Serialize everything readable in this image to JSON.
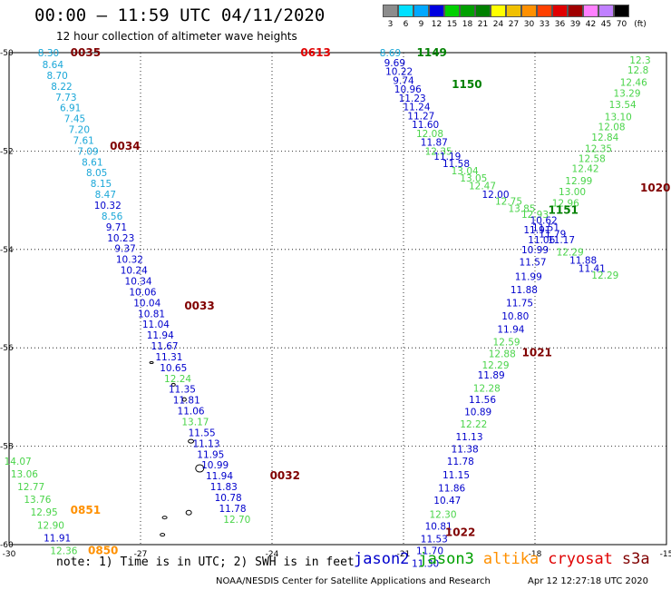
{
  "header": {
    "title": "00:00 – 11:59 UTC 04/11/2020",
    "subtitle": "12 hour collection of altimeter wave heights"
  },
  "color_scale": {
    "unit": "(ft)",
    "bins": [
      {
        "label": "3",
        "color": "#8c8c8c"
      },
      {
        "label": "6",
        "color": "#00e0ff"
      },
      {
        "label": "9",
        "color": "#00a8ff"
      },
      {
        "label": "12",
        "color": "#0000e0"
      },
      {
        "label": "15",
        "color": "#00d000"
      },
      {
        "label": "18",
        "color": "#00a000"
      },
      {
        "label": "21",
        "color": "#008000"
      },
      {
        "label": "24",
        "color": "#ffff00"
      },
      {
        "label": "27",
        "color": "#f0c000"
      },
      {
        "label": "30",
        "color": "#ff9000"
      },
      {
        "label": "33",
        "color": "#ff4000"
      },
      {
        "label": "36",
        "color": "#e00000"
      },
      {
        "label": "39",
        "color": "#a00000"
      },
      {
        "label": "42",
        "color": "#ff80ff"
      },
      {
        "label": "45",
        "color": "#c080ff"
      },
      {
        "label": "70",
        "color": "#000000"
      }
    ]
  },
  "map": {
    "lon_ticks": [
      "-30",
      "-27",
      "-24",
      "-21",
      "-18",
      "-15"
    ],
    "lat_ticks": [
      "-50",
      "-52",
      "-54",
      "-56",
      "-58",
      "-60"
    ],
    "lon_range": [
      -30,
      -15
    ],
    "lat_range": [
      -60,
      -50
    ],
    "tracks": [
      {
        "color": "#1aa7d8",
        "points": [
          {
            "lon": -29.1,
            "lat": -50.0,
            "t": "8.30"
          },
          {
            "lon": -29.0,
            "lat": -50.24,
            "t": "8.64"
          },
          {
            "lon": -28.9,
            "lat": -50.46,
            "t": "8.70"
          },
          {
            "lon": -28.8,
            "lat": -50.68,
            "t": "8.22"
          },
          {
            "lon": -28.7,
            "lat": -50.9,
            "t": "7.73"
          },
          {
            "lon": -28.6,
            "lat": -51.12,
            "t": "6.91"
          },
          {
            "lon": -28.5,
            "lat": -51.34,
            "t": "7.45"
          },
          {
            "lon": -28.4,
            "lat": -51.56,
            "t": "7.20"
          },
          {
            "lon": -28.3,
            "lat": -51.78,
            "t": "7.61"
          },
          {
            "lon": -28.2,
            "lat": -52.0,
            "t": "7.09"
          },
          {
            "lon": -28.1,
            "lat": -52.22,
            "t": "8.61"
          },
          {
            "lon": -28.0,
            "lat": -52.44,
            "t": "8.05"
          },
          {
            "lon": -27.9,
            "lat": -52.66,
            "t": "8.15"
          },
          {
            "lon": -27.8,
            "lat": -52.88,
            "t": "8.47"
          }
        ]
      },
      {
        "color": "#0000cc",
        "points": [
          {
            "lon": -27.75,
            "lat": -53.1,
            "t": "10.32"
          },
          {
            "lon": -27.65,
            "lat": -53.32,
            "t": "8.56",
            "c": "#1aa7d8"
          },
          {
            "lon": -27.55,
            "lat": -53.54,
            "t": "9.71"
          },
          {
            "lon": -27.45,
            "lat": -53.76,
            "t": "10.23"
          },
          {
            "lon": -27.35,
            "lat": -53.98,
            "t": "9.37"
          },
          {
            "lon": -27.25,
            "lat": -54.2,
            "t": "10.32"
          },
          {
            "lon": -27.15,
            "lat": -54.42,
            "t": "10.24"
          },
          {
            "lon": -27.05,
            "lat": -54.64,
            "t": "10.34"
          },
          {
            "lon": -26.95,
            "lat": -54.86,
            "t": "10.06"
          },
          {
            "lon": -26.85,
            "lat": -55.08,
            "t": "10.04"
          },
          {
            "lon": -26.75,
            "lat": -55.3,
            "t": "10.81"
          },
          {
            "lon": -26.65,
            "lat": -55.52,
            "t": "11.04"
          },
          {
            "lon": -26.55,
            "lat": -55.74,
            "t": "11.94"
          },
          {
            "lon": -26.45,
            "lat": -55.96,
            "t": "11.67"
          },
          {
            "lon": -26.35,
            "lat": -56.18,
            "t": "11.31"
          },
          {
            "lon": -26.25,
            "lat": -56.4,
            "t": "10.65"
          },
          {
            "lon": -26.15,
            "lat": -56.62,
            "t": "12.24",
            "c": "#4ad44a"
          },
          {
            "lon": -26.05,
            "lat": -56.84,
            "t": "11.35"
          },
          {
            "lon": -25.95,
            "lat": -57.06,
            "t": "11.81"
          },
          {
            "lon": -25.85,
            "lat": -57.28,
            "t": "11.06"
          },
          {
            "lon": -25.75,
            "lat": -57.5,
            "t": "13.17",
            "c": "#4ad44a"
          },
          {
            "lon": -25.6,
            "lat": -57.72,
            "t": "11.55"
          },
          {
            "lon": -25.5,
            "lat": -57.94,
            "t": "11.13"
          },
          {
            "lon": -25.4,
            "lat": -58.16,
            "t": "11.95"
          },
          {
            "lon": -25.3,
            "lat": -58.38,
            "t": "10.99"
          },
          {
            "lon": -25.2,
            "lat": -58.6,
            "t": "11.94"
          },
          {
            "lon": -25.1,
            "lat": -58.82,
            "t": "11.83"
          },
          {
            "lon": -25.0,
            "lat": -59.04,
            "t": "10.78"
          },
          {
            "lon": -24.9,
            "lat": -59.26,
            "t": "11.78"
          },
          {
            "lon": -24.8,
            "lat": -59.48,
            "t": "12.70",
            "c": "#4ad44a"
          }
        ]
      },
      {
        "color": "#0000cc",
        "points": [
          {
            "lon": -21.3,
            "lat": -50.0,
            "t": "8.69",
            "c": "#1aa7d8"
          },
          {
            "lon": -21.2,
            "lat": -50.2,
            "t": "9.69"
          },
          {
            "lon": -21.1,
            "lat": -50.38,
            "t": "10.22"
          },
          {
            "lon": -21.0,
            "lat": -50.56,
            "t": "9.74"
          },
          {
            "lon": -20.9,
            "lat": -50.74,
            "t": "10.96"
          },
          {
            "lon": -20.8,
            "lat": -50.92,
            "t": "11.23"
          },
          {
            "lon": -20.7,
            "lat": -51.1,
            "t": "11.24"
          },
          {
            "lon": -20.6,
            "lat": -51.28,
            "t": "11.27"
          },
          {
            "lon": -20.5,
            "lat": -51.46,
            "t": "11.60"
          },
          {
            "lon": -20.4,
            "lat": -51.64,
            "t": "12.08",
            "c": "#4ad44a"
          },
          {
            "lon": -20.3,
            "lat": -51.82,
            "t": "11.87"
          },
          {
            "lon": -20.2,
            "lat": -52.0,
            "t": "12.35",
            "c": "#4ad44a"
          },
          {
            "lon": -20.0,
            "lat": -52.1,
            "t": "11.19"
          },
          {
            "lon": -19.8,
            "lat": -52.25,
            "t": "11.58"
          },
          {
            "lon": -19.6,
            "lat": -52.4,
            "t": "13.04",
            "c": "#4ad44a"
          },
          {
            "lon": -19.4,
            "lat": -52.55,
            "t": "13.05",
            "c": "#4ad44a"
          },
          {
            "lon": -19.2,
            "lat": -52.7,
            "t": "12.47",
            "c": "#4ad44a"
          },
          {
            "lon": -18.9,
            "lat": -52.88,
            "t": "12.00"
          },
          {
            "lon": -18.6,
            "lat": -53.02,
            "t": "12.75",
            "c": "#4ad44a"
          },
          {
            "lon": -18.3,
            "lat": -53.16,
            "t": "13.85",
            "c": "#4ad44a"
          },
          {
            "lon": -18.0,
            "lat": -53.28,
            "t": "12.93",
            "c": "#4ad44a"
          },
          {
            "lon": -17.8,
            "lat": -53.4,
            "t": "10.62"
          },
          {
            "lon": -17.75,
            "lat": -53.55,
            "t": "11.51"
          },
          {
            "lon": -17.6,
            "lat": -53.68,
            "t": "11.79"
          },
          {
            "lon": -17.4,
            "lat": -53.8,
            "t": "11.17"
          },
          {
            "lon": -17.2,
            "lat": -54.05,
            "t": "12.29",
            "c": "#4ad44a"
          },
          {
            "lon": -16.9,
            "lat": -54.22,
            "t": "11.88"
          },
          {
            "lon": -16.7,
            "lat": -54.38,
            "t": "11.41"
          },
          {
            "lon": -16.4,
            "lat": -54.52,
            "t": "12.29",
            "c": "#4ad44a"
          }
        ]
      },
      {
        "color": "#4ad44a",
        "points": [
          {
            "lon": -15.6,
            "lat": -50.15,
            "t": "12.3"
          },
          {
            "lon": -15.65,
            "lat": -50.35,
            "t": "12.8"
          },
          {
            "lon": -15.75,
            "lat": -50.6,
            "t": "12.46"
          },
          {
            "lon": -15.9,
            "lat": -50.82,
            "t": "13.29"
          },
          {
            "lon": -16.0,
            "lat": -51.05,
            "t": "13.54"
          },
          {
            "lon": -16.1,
            "lat": -51.3,
            "t": "13.10"
          },
          {
            "lon": -16.25,
            "lat": -51.5,
            "t": "12.08"
          },
          {
            "lon": -16.4,
            "lat": -51.72,
            "t": "12.84"
          },
          {
            "lon": -16.55,
            "lat": -51.95,
            "t": "12.35"
          },
          {
            "lon": -16.7,
            "lat": -52.15,
            "t": "12.58"
          },
          {
            "lon": -16.85,
            "lat": -52.35,
            "t": "12.42"
          },
          {
            "lon": -17.0,
            "lat": -52.6,
            "t": "12.99"
          },
          {
            "lon": -17.15,
            "lat": -52.82,
            "t": "13.00"
          },
          {
            "lon": -17.3,
            "lat": -53.05,
            "t": "12.96"
          }
        ]
      },
      {
        "color": "#0000cc",
        "points": [
          {
            "lon": -17.85,
            "lat": -53.8,
            "t": "11.06"
          },
          {
            "lon": -17.95,
            "lat": -53.6,
            "t": "11.91"
          },
          {
            "lon": -18.0,
            "lat": -54.0,
            "t": "10.99"
          },
          {
            "lon": -18.05,
            "lat": -54.25,
            "t": "11.57"
          },
          {
            "lon": -18.15,
            "lat": -54.55,
            "t": "11.99"
          },
          {
            "lon": -18.25,
            "lat": -54.82,
            "t": "11.88"
          },
          {
            "lon": -18.35,
            "lat": -55.08,
            "t": "11.75"
          },
          {
            "lon": -18.45,
            "lat": -55.35,
            "t": "10.80"
          },
          {
            "lon": -18.55,
            "lat": -55.62,
            "t": "11.94"
          },
          {
            "lon": -18.65,
            "lat": -55.88,
            "t": "12.59",
            "c": "#4ad44a"
          },
          {
            "lon": -18.75,
            "lat": -56.12,
            "t": "12.88",
            "c": "#4ad44a"
          },
          {
            "lon": -18.9,
            "lat": -56.35,
            "t": "12.29",
            "c": "#4ad44a"
          },
          {
            "lon": -19.0,
            "lat": -56.55,
            "t": "11.89"
          },
          {
            "lon": -19.1,
            "lat": -56.82,
            "t": "12.28",
            "c": "#4ad44a"
          },
          {
            "lon": -19.2,
            "lat": -57.05,
            "t": "11.56"
          },
          {
            "lon": -19.3,
            "lat": -57.3,
            "t": "10.89"
          },
          {
            "lon": -19.4,
            "lat": -57.55,
            "t": "12.22",
            "c": "#4ad44a"
          },
          {
            "lon": -19.5,
            "lat": -57.8,
            "t": "11.13"
          },
          {
            "lon": -19.6,
            "lat": -58.05,
            "t": "11.38"
          },
          {
            "lon": -19.7,
            "lat": -58.3,
            "t": "11.78"
          },
          {
            "lon": -19.8,
            "lat": -58.58,
            "t": "11.15"
          },
          {
            "lon": -19.9,
            "lat": -58.85,
            "t": "11.86"
          },
          {
            "lon": -20.0,
            "lat": -59.1,
            "t": "10.47"
          },
          {
            "lon": -20.1,
            "lat": -59.38,
            "t": "12.30",
            "c": "#4ad44a"
          },
          {
            "lon": -20.2,
            "lat": -59.62,
            "t": "10.81"
          },
          {
            "lon": -20.3,
            "lat": -59.88,
            "t": "11.53"
          },
          {
            "lon": -20.4,
            "lat": -60.12,
            "t": "11.70"
          },
          {
            "lon": -20.5,
            "lat": -60.38,
            "t": "11.30"
          }
        ]
      },
      {
        "color": "#4ad44a",
        "points": [
          {
            "lon": -29.8,
            "lat": -58.3,
            "t": "14.07"
          },
          {
            "lon": -29.65,
            "lat": -58.56,
            "t": "13.06"
          },
          {
            "lon": -29.5,
            "lat": -58.82,
            "t": "12.77"
          },
          {
            "lon": -29.35,
            "lat": -59.08,
            "t": "13.76"
          },
          {
            "lon": -29.2,
            "lat": -59.34,
            "t": "12.95"
          },
          {
            "lon": -29.05,
            "lat": -59.6,
            "t": "12.90"
          },
          {
            "lon": -28.9,
            "lat": -59.86,
            "t": "11.91",
            "c": "#0000cc"
          },
          {
            "lon": -28.75,
            "lat": -60.12,
            "t": "12.36"
          }
        ]
      }
    ],
    "pass_times": [
      {
        "lon": -28.6,
        "lat": -50.0,
        "t": "0035",
        "c": "#800000"
      },
      {
        "lon": -27.7,
        "lat": -51.9,
        "t": "0034",
        "c": "#800000"
      },
      {
        "lon": -26.0,
        "lat": -55.15,
        "t": "0033",
        "c": "#800000"
      },
      {
        "lon": -24.05,
        "lat": -58.6,
        "t": "0032",
        "c": "#800000"
      },
      {
        "lon": -23.35,
        "lat": -50.0,
        "t": "0613",
        "c": "#e00000"
      },
      {
        "lon": -20.7,
        "lat": -50.0,
        "t": "1149",
        "c": "#008000"
      },
      {
        "lon": -19.9,
        "lat": -50.65,
        "t": "1150",
        "c": "#008000"
      },
      {
        "lon": -17.7,
        "lat": -53.2,
        "t": "1151",
        "c": "#008000"
      },
      {
        "lon": -15.6,
        "lat": -52.75,
        "t": "1020",
        "c": "#800000"
      },
      {
        "lon": -18.3,
        "lat": -56.1,
        "t": "1021",
        "c": "#800000"
      },
      {
        "lon": -20.05,
        "lat": -59.75,
        "t": "1022",
        "c": "#800000"
      },
      {
        "lon": -28.6,
        "lat": -59.3,
        "t": "0851",
        "c": "#ff9000"
      },
      {
        "lon": -28.2,
        "lat": -60.12,
        "t": "0850",
        "c": "#ff9000"
      }
    ]
  },
  "footer": {
    "note": "note: 1) Time is in UTC; 2) SWH is in feet",
    "satellites": [
      {
        "name": "jason2",
        "color": "#0000cc"
      },
      {
        "name": "jason3",
        "color": "#00a000"
      },
      {
        "name": "altika",
        "color": "#ff9000"
      },
      {
        "name": "cryosat",
        "color": "#e00000"
      },
      {
        "name": "s3a",
        "color": "#800000"
      }
    ],
    "credit": "NOAA/NESDIS Center for Satellite Applications and Research",
    "timestamp": "Apr 12 12:27:18 UTC 2020"
  }
}
